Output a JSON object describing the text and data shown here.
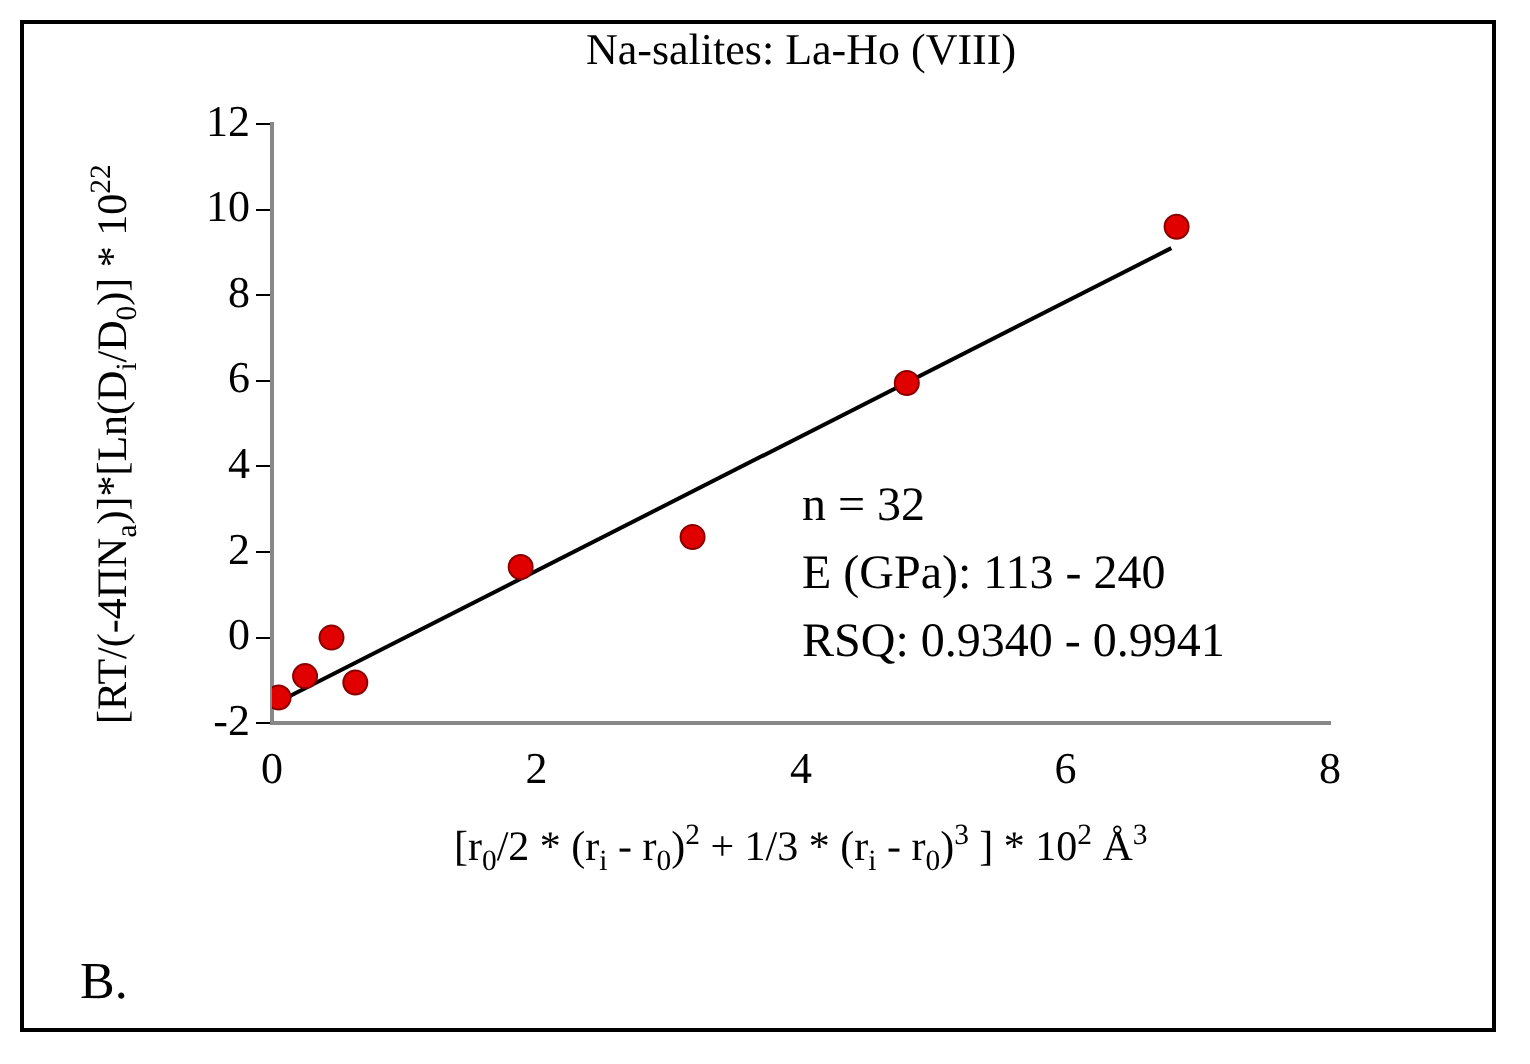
{
  "chart_data": {
    "type": "scatter",
    "title": "Na-salites: La-Ho (VIII)",
    "xlabel": "[r$_{0}$/2 * (r$_{i}$ - r$_{0}$)$^{2}$ + 1/3 * (r$_{i}$ - r$_{0}$)$^{3}$ ] * 10$^{2}$ Å$^{3}$",
    "ylabel": "[RT/(-4ΠN$_{a}$)]*[Ln(D$_{i}$/D$_{0}$)] * 10$^{22}$",
    "series": [
      {
        "color": "#e00000",
        "marker": "circle",
        "x": [
          0.05,
          0.25,
          0.45,
          0.63,
          1.88,
          3.18,
          4.8,
          6.84
        ],
        "values": [
          -1.4,
          -0.9,
          0,
          -1.05,
          1.65,
          2.35,
          5.95,
          9.6
        ]
      },
      {
        "type": "line",
        "color": "#000000",
        "marker": "none",
        "x": [
          0.05,
          6.8
        ],
        "values": [
          -1.5,
          9.1
        ]
      }
    ],
    "xlim": [
      0,
      8
    ],
    "xticks": [
      0,
      2,
      4,
      6,
      8
    ],
    "ylim": [
      -2,
      12
    ],
    "yticks": [
      -2,
      0,
      2,
      4,
      6,
      8,
      10,
      12
    ],
    "annotations": [
      "n = 32",
      "E (GPa): 113 - 240",
      "RSQ: 0.9340 - 0.9941",
      "B."
    ]
  }
}
